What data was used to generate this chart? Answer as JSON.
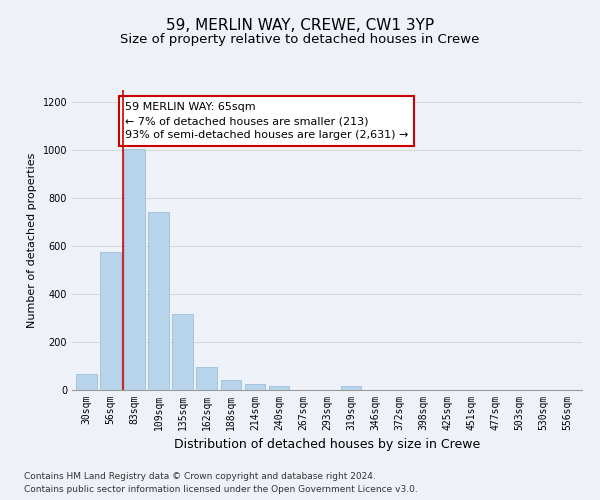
{
  "title": "59, MERLIN WAY, CREWE, CW1 3YP",
  "subtitle": "Size of property relative to detached houses in Crewe",
  "xlabel": "Distribution of detached houses by size in Crewe",
  "ylabel": "Number of detached properties",
  "categories": [
    "30sqm",
    "56sqm",
    "83sqm",
    "109sqm",
    "135sqm",
    "162sqm",
    "188sqm",
    "214sqm",
    "240sqm",
    "267sqm",
    "293sqm",
    "319sqm",
    "346sqm",
    "372sqm",
    "398sqm",
    "425sqm",
    "451sqm",
    "477sqm",
    "503sqm",
    "530sqm",
    "556sqm"
  ],
  "values": [
    65,
    575,
    1005,
    740,
    315,
    95,
    40,
    25,
    15,
    0,
    0,
    15,
    0,
    0,
    0,
    0,
    0,
    0,
    0,
    0,
    0
  ],
  "bar_color": "#b8d4ea",
  "bar_edge_color": "#90b8d8",
  "vline_x": 1.5,
  "vline_color": "#cc0000",
  "annotation_text": "59 MERLIN WAY: 65sqm\n← 7% of detached houses are smaller (213)\n93% of semi-detached houses are larger (2,631) →",
  "annotation_box_facecolor": "#ffffff",
  "annotation_box_edgecolor": "#cc0000",
  "ylim": [
    0,
    1250
  ],
  "yticks": [
    0,
    200,
    400,
    600,
    800,
    1000,
    1200
  ],
  "background_color": "#eef2f8",
  "plot_bg_color": "#eef2f8",
  "footer_line1": "Contains HM Land Registry data © Crown copyright and database right 2024.",
  "footer_line2": "Contains public sector information licensed under the Open Government Licence v3.0.",
  "title_fontsize": 11,
  "subtitle_fontsize": 9.5,
  "xlabel_fontsize": 9,
  "ylabel_fontsize": 8,
  "tick_fontsize": 7,
  "annotation_fontsize": 8,
  "footer_fontsize": 6.5
}
